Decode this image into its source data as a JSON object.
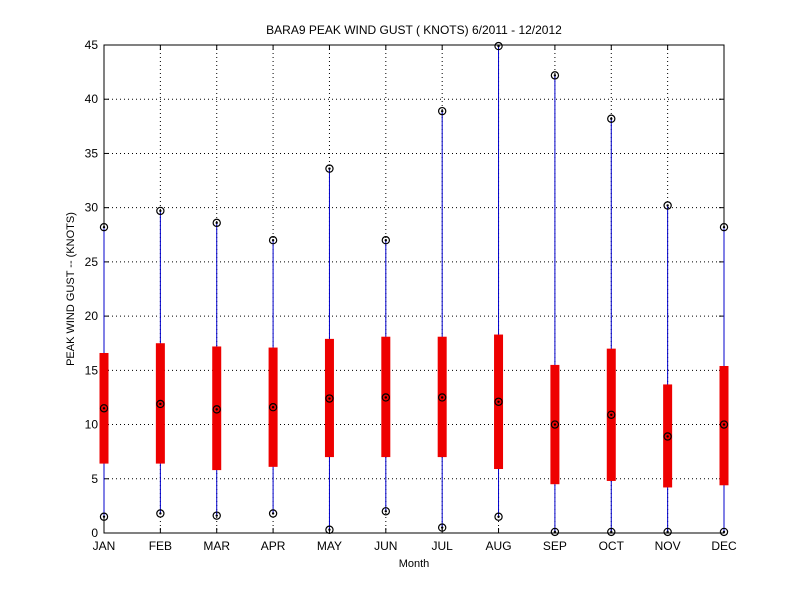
{
  "chart_data": {
    "type": "box",
    "title": "BARA9  PEAK WIND GUST ( KNOTS) 6/2011 - 12/2012",
    "xlabel": "Month",
    "ylabel": "PEAK WIND GUST -- (KNOTS)",
    "ylim": [
      0,
      45
    ],
    "yticks": [
      0,
      5,
      10,
      15,
      20,
      25,
      30,
      35,
      40,
      45
    ],
    "grid": true,
    "categories": [
      "JAN",
      "FEB",
      "MAR",
      "APR",
      "MAY",
      "JUN",
      "JUL",
      "AUG",
      "SEP",
      "OCT",
      "NOV",
      "DEC"
    ],
    "series": [
      {
        "min": [
          1.5,
          1.8,
          1.6,
          1.8,
          0.3,
          2.0,
          0.5,
          1.5,
          0.1,
          0.1,
          0.1,
          0.1
        ],
        "q1": [
          6.4,
          6.4,
          5.8,
          6.1,
          7.0,
          7.0,
          7.0,
          5.9,
          4.5,
          4.8,
          4.2,
          4.4
        ],
        "median": [
          11.5,
          11.9,
          11.4,
          11.6,
          12.4,
          12.5,
          12.5,
          12.1,
          10.0,
          10.9,
          8.9,
          10.0
        ],
        "q3": [
          16.6,
          17.5,
          17.2,
          17.1,
          17.9,
          18.1,
          18.1,
          18.3,
          15.5,
          17.0,
          13.7,
          15.4
        ],
        "max": [
          28.2,
          29.7,
          28.6,
          27.0,
          33.6,
          27.0,
          38.9,
          44.9,
          42.2,
          38.2,
          30.2,
          28.2
        ]
      }
    ],
    "colors": {
      "whisker": "#0000cc",
      "box": "#ee0000",
      "marker": "#000000",
      "grid": "#000000"
    }
  }
}
